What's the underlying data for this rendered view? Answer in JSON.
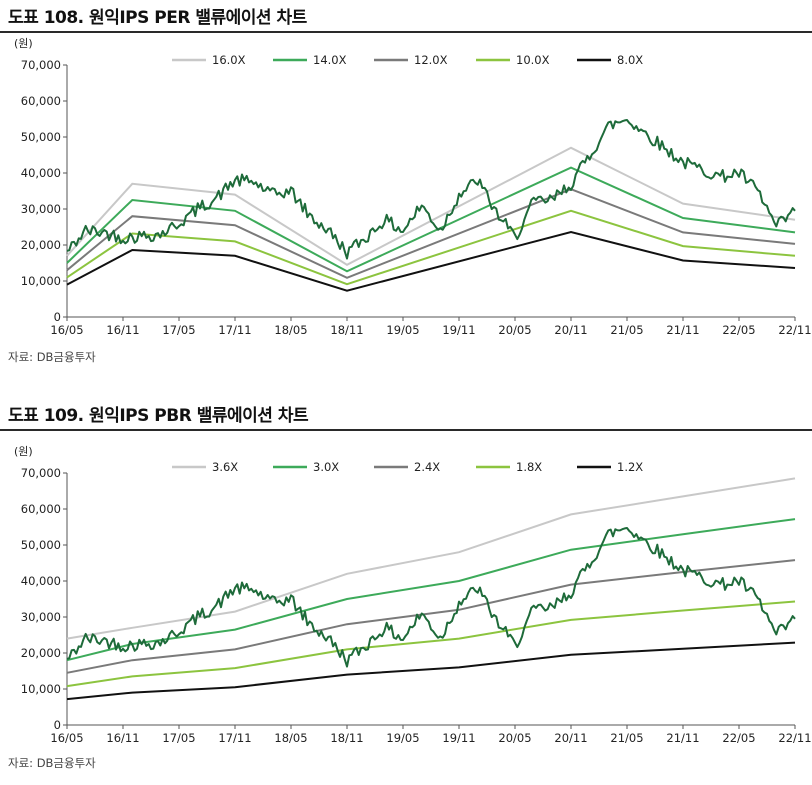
{
  "charts": [
    {
      "id": "per",
      "title": "도표 108. 원익IPS PER 밸류에이션 차트",
      "source": "자료: DB금융투자"
    },
    {
      "id": "pbr",
      "title": "도표 109. 원익IPS PBR 밸류에이션 차트",
      "source": "자료: DB금융투자"
    }
  ],
  "chart_data": [
    {
      "type": "line",
      "title": "도표 108. 원익IPS PER 밸류에이션 차트",
      "ylabel": "(원)",
      "ylim": [
        0,
        70000
      ],
      "yticks": [
        0,
        10000,
        20000,
        30000,
        40000,
        50000,
        60000,
        70000
      ],
      "ytick_labels": [
        "0",
        "10,000",
        "20,000",
        "30,000",
        "40,000",
        "50,000",
        "60,000",
        "70,000"
      ],
      "xlim": [
        "2016-05",
        "2022-11"
      ],
      "xtick_labels": [
        "16/05",
        "16/11",
        "17/05",
        "17/11",
        "18/05",
        "18/11",
        "19/05",
        "19/11",
        "20/05",
        "20/11",
        "21/05",
        "21/11",
        "22/05",
        "22/11"
      ],
      "grid": false,
      "legend_position": "top",
      "x": [
        "2016-05",
        "2016-12",
        "2017-11",
        "2018-11",
        "2020-11",
        "2021-11",
        "2022-11"
      ],
      "series": [
        {
          "name": "16.0X",
          "color": "#c8c8c8",
          "values": [
            17000,
            37000,
            34000,
            14500,
            47000,
            31500,
            27000
          ]
        },
        {
          "name": "14.0X",
          "color": "#3daa5a",
          "values": [
            15000,
            32500,
            29500,
            12700,
            41500,
            27500,
            23500
          ]
        },
        {
          "name": "12.0X",
          "color": "#7a7a7a",
          "values": [
            13000,
            28000,
            25500,
            10900,
            35500,
            23500,
            20300
          ]
        },
        {
          "name": "10.0X",
          "color": "#8cc43f",
          "values": [
            11000,
            23200,
            21000,
            9100,
            29500,
            19700,
            17000
          ]
        },
        {
          "name": "8.0X",
          "color": "#111111",
          "values": [
            9000,
            18600,
            17000,
            7300,
            23600,
            15700,
            13600
          ]
        }
      ],
      "price_series": {
        "color": "#1e6b3a",
        "x": [
          "2016-05",
          "2016-07",
          "2016-09",
          "2016-11",
          "2017-01",
          "2017-03",
          "2017-05",
          "2017-07",
          "2017-09",
          "2017-11",
          "2018-01",
          "2018-03",
          "2018-05",
          "2018-07",
          "2018-09",
          "2018-11",
          "2019-01",
          "2019-03",
          "2019-05",
          "2019-07",
          "2019-09",
          "2019-11",
          "2020-01",
          "2020-03",
          "2020-05",
          "2020-07",
          "2020-09",
          "2020-11",
          "2021-01",
          "2021-03",
          "2021-05",
          "2021-07",
          "2021-09",
          "2021-11",
          "2022-01",
          "2022-03",
          "2022-05",
          "2022-07",
          "2022-09",
          "2022-11"
        ],
        "values": [
          18000,
          24000,
          23500,
          22000,
          22500,
          23000,
          26000,
          30000,
          33000,
          38000,
          37500,
          34000,
          35000,
          28000,
          24000,
          18000,
          22000,
          27000,
          24000,
          31000,
          24000,
          34000,
          38000,
          29000,
          22000,
          32000,
          32500,
          37000,
          45000,
          53000,
          55000,
          51000,
          47000,
          43000,
          41000,
          39000,
          40000,
          35000,
          25000,
          29500
        ]
      }
    },
    {
      "type": "line",
      "title": "도표 109. 원익IPS PBR 밸류에이션 차트",
      "ylabel": "(원)",
      "ylim": [
        0,
        70000
      ],
      "yticks": [
        0,
        10000,
        20000,
        30000,
        40000,
        50000,
        60000,
        70000
      ],
      "ytick_labels": [
        "0",
        "10,000",
        "20,000",
        "30,000",
        "40,000",
        "50,000",
        "60,000",
        "70,000"
      ],
      "xlim": [
        "2016-05",
        "2022-11"
      ],
      "xtick_labels": [
        "16/05",
        "16/11",
        "17/05",
        "17/11",
        "18/05",
        "18/11",
        "19/05",
        "19/11",
        "20/05",
        "20/11",
        "21/05",
        "21/11",
        "22/05",
        "22/11"
      ],
      "grid": false,
      "legend_position": "top",
      "x": [
        "2016-05",
        "2016-12",
        "2017-11",
        "2018-11",
        "2019-11",
        "2020-11",
        "2021-11",
        "2022-11"
      ],
      "series": [
        {
          "name": "3.6X",
          "color": "#c8c8c8",
          "values": [
            24000,
            27000,
            31500,
            42000,
            48000,
            58500,
            63500,
            68500
          ]
        },
        {
          "name": "3.0X",
          "color": "#3daa5a",
          "values": [
            18000,
            22500,
            26500,
            35000,
            40000,
            48700,
            53000,
            57200
          ]
        },
        {
          "name": "2.4X",
          "color": "#7a7a7a",
          "values": [
            14500,
            18000,
            21000,
            28000,
            32000,
            39000,
            42500,
            45800
          ]
        },
        {
          "name": "1.8X",
          "color": "#8cc43f",
          "values": [
            10800,
            13500,
            15800,
            21000,
            24000,
            29200,
            31800,
            34300
          ]
        },
        {
          "name": "1.2X",
          "color": "#111111",
          "values": [
            7200,
            9000,
            10500,
            14000,
            16000,
            19500,
            21200,
            22900
          ]
        }
      ],
      "price_series": {
        "color": "#1e6b3a",
        "x": [
          "2016-05",
          "2016-07",
          "2016-09",
          "2016-11",
          "2017-01",
          "2017-03",
          "2017-05",
          "2017-07",
          "2017-09",
          "2017-11",
          "2018-01",
          "2018-03",
          "2018-05",
          "2018-07",
          "2018-09",
          "2018-11",
          "2019-01",
          "2019-03",
          "2019-05",
          "2019-07",
          "2019-09",
          "2019-11",
          "2020-01",
          "2020-03",
          "2020-05",
          "2020-07",
          "2020-09",
          "2020-11",
          "2021-01",
          "2021-03",
          "2021-05",
          "2021-07",
          "2021-09",
          "2021-11",
          "2022-01",
          "2022-03",
          "2022-05",
          "2022-07",
          "2022-09",
          "2022-11"
        ],
        "values": [
          18000,
          24000,
          23500,
          22000,
          22500,
          23000,
          26000,
          30000,
          33000,
          38000,
          37500,
          34000,
          35000,
          28000,
          24000,
          18000,
          22000,
          27000,
          24000,
          31000,
          24000,
          34000,
          38000,
          29000,
          22000,
          32000,
          32500,
          37000,
          45000,
          53000,
          55000,
          51000,
          47000,
          43000,
          41000,
          39000,
          40000,
          35000,
          25000,
          29500
        ]
      }
    }
  ]
}
